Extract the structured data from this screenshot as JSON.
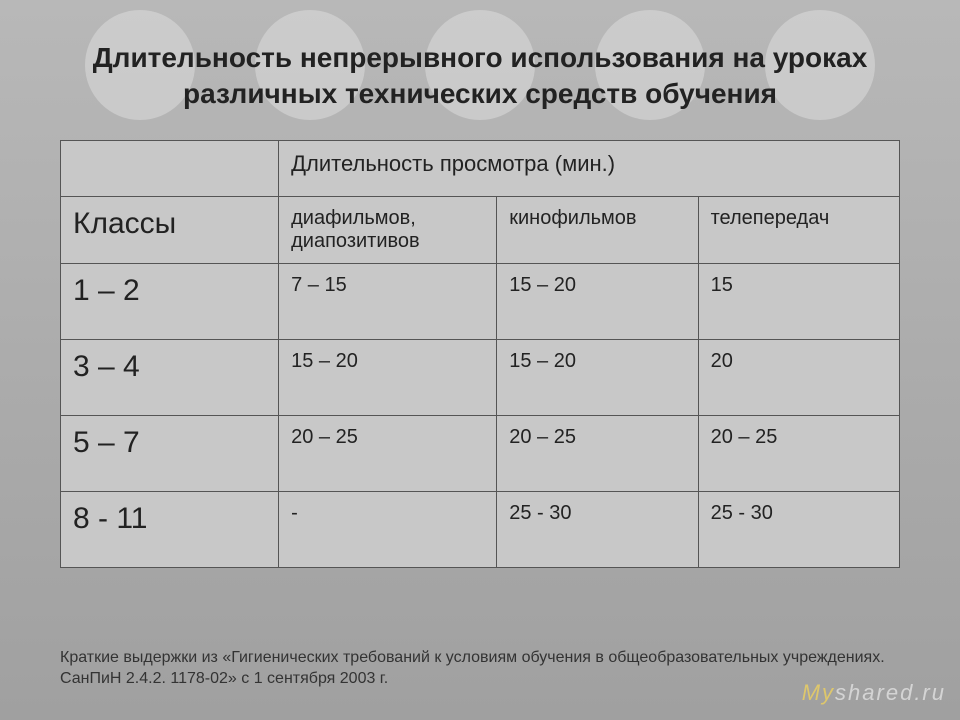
{
  "title": "Длительность непрерывного использования на уроках различных технических средств обучения",
  "table": {
    "header_top": "Длительность просмотра (мин.)",
    "header_sub": {
      "col1": "Классы",
      "col2": "диафильмов, диапозитивов",
      "col3": "кинофильмов",
      "col4": "телепередач"
    },
    "rows": [
      {
        "grade": "1 – 2",
        "c2": "7 – 15",
        "c3": "15 – 20",
        "c4": "15"
      },
      {
        "grade": "3 – 4",
        "c2": "15 – 20",
        "c3": "15 – 20",
        "c4": "20"
      },
      {
        "grade": "5 – 7",
        "c2": "20 – 25",
        "c3": "20 – 25",
        "c4": "20 – 25"
      },
      {
        "grade": "8 - 11",
        "c2": "-",
        "c3": "25 - 30",
        "c4": "25 - 30"
      }
    ]
  },
  "footnote": "Краткие выдержки из «Гигиенических требований к условиям обучения в общеобразовательных учреждениях. СанПиН 2.4.2. 1178-02» с 1 сентября 2003 г.",
  "watermark_prefix": "My",
  "watermark_suffix": "shared.ru"
}
